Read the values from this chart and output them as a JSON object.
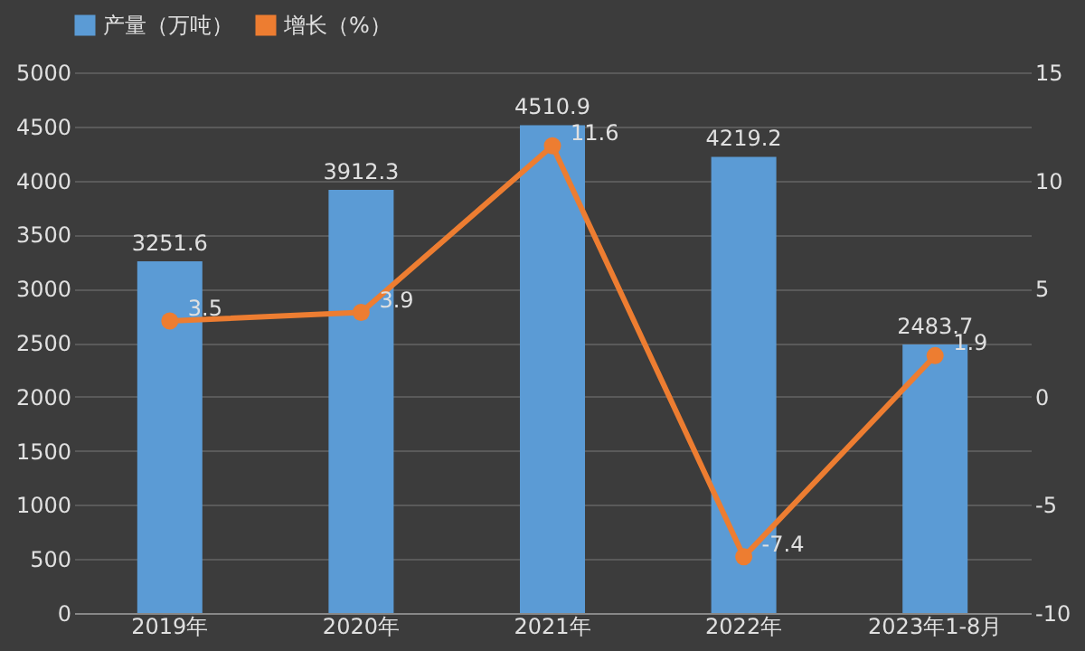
{
  "chart_data": {
    "type": "bar",
    "categories": [
      "2019年",
      "2020年",
      "2021年",
      "2022年",
      "2023年1-8月"
    ],
    "series": [
      {
        "name": "产量（万吨）",
        "color": "#5b9bd5",
        "values": [
          3251.6,
          3912.3,
          4510.9,
          4219.2,
          2483.7
        ]
      },
      {
        "name": "增长（%）",
        "type": "line",
        "axis": "y2",
        "color": "#ed7d31",
        "values": [
          3.5,
          3.9,
          11.6,
          -7.4,
          1.9
        ]
      }
    ],
    "ylim": [
      0,
      5000
    ],
    "yticks": [
      0,
      500,
      1000,
      1500,
      2000,
      2500,
      3000,
      3500,
      4000,
      4500,
      5000
    ],
    "y2lim": [
      -10,
      15
    ],
    "y2ticks": [
      -10,
      -5,
      0,
      5,
      10,
      15
    ],
    "grid": "y",
    "legend": "top",
    "data_labels": true,
    "marker": "circle"
  }
}
